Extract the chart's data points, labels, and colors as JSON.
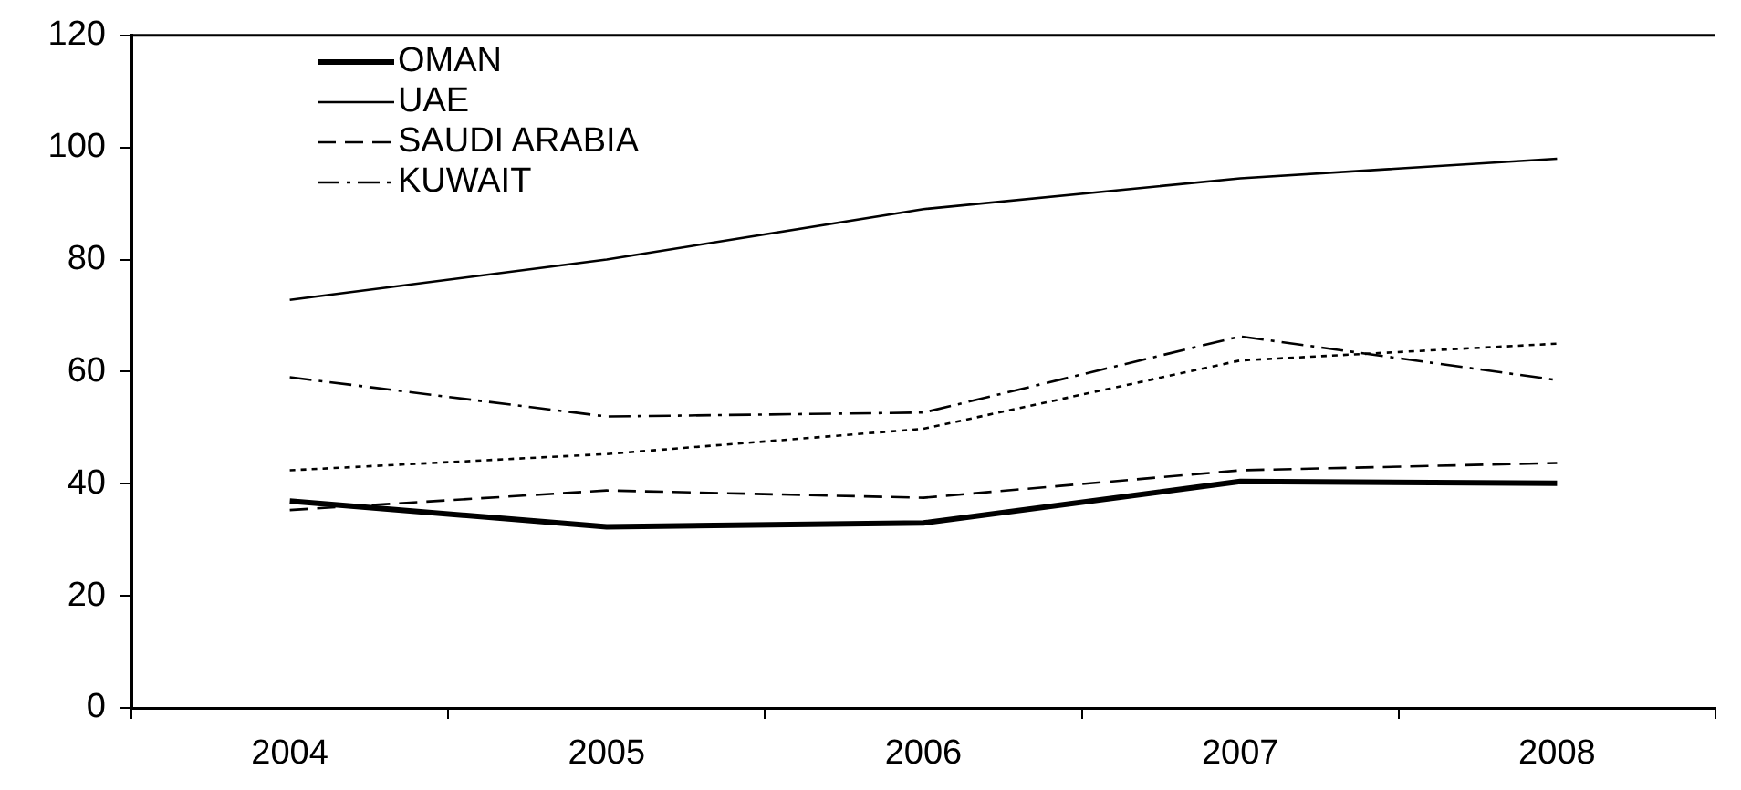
{
  "chart_data": {
    "type": "line",
    "categories": [
      "2004",
      "2005",
      "2006",
      "2007",
      "2008"
    ],
    "series": [
      {
        "name": "OMAN",
        "color": "#000000",
        "line_style": "solid",
        "values": [
          36.9,
          32.3,
          33,
          40.4,
          40.1
        ]
      },
      {
        "name": "UAE",
        "color": "#000000",
        "line_style": "solid",
        "values": [
          72.8,
          80,
          89,
          94.5,
          98
        ]
      },
      {
        "name": "SAUDI ARABIA",
        "color": "#000000",
        "line_style": "dashed",
        "values": [
          35.3,
          38.8,
          37.5,
          42.4,
          43.7
        ]
      },
      {
        "name": "KUWAIT",
        "color": "#000000",
        "line_style": "dashdot",
        "values": [
          59,
          52,
          52.7,
          66.3,
          58.5
        ]
      },
      {
        "color": "#000000",
        "line_style": "dotted",
        "values": [
          42.4,
          45.3,
          49.8,
          62,
          65
        ]
      }
    ],
    "ylim": [
      0,
      120
    ],
    "yticks": [
      0,
      20,
      40,
      60,
      80,
      100,
      120
    ],
    "grid": false,
    "legend": "top left",
    "marker": "none"
  }
}
